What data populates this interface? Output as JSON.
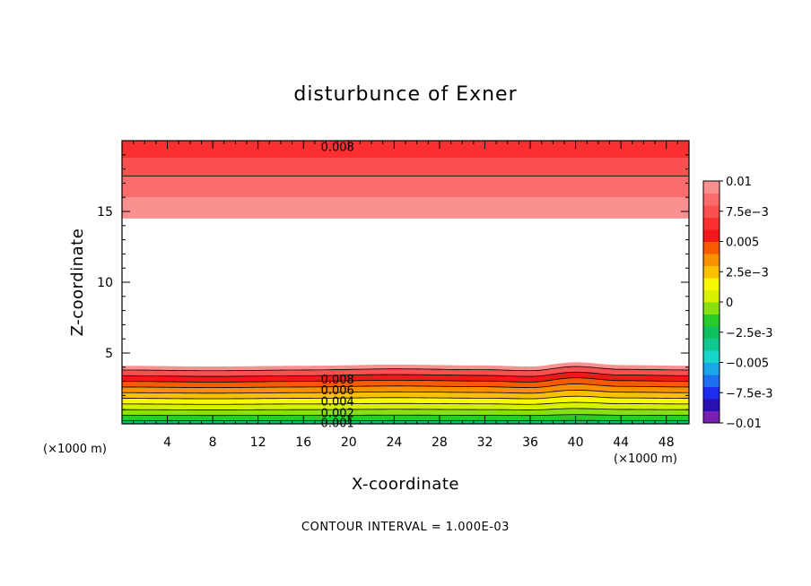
{
  "chart_data": {
    "type": "heatmap",
    "title": "disturbunce of Exner",
    "xlabel": "X-coordinate",
    "ylabel": "Z-coordinate",
    "x_unit": "(×1000 m)",
    "y_unit": "(×1000 m)",
    "xlim": [
      0,
      50
    ],
    "ylim": [
      0,
      20
    ],
    "x_ticks": [
      4,
      8,
      12,
      16,
      20,
      24,
      28,
      32,
      36,
      40,
      44,
      48
    ],
    "y_ticks": [
      5,
      10,
      15
    ],
    "note": "CONTOUR INTERVAL = 1.000E-03",
    "colorbar": {
      "labels": [
        "0.01",
        "7.5e-3",
        "0.005",
        "2.5e-3",
        "0",
        "-2.5e-3",
        "-0.005",
        "-7.5e-3",
        "-0.01"
      ],
      "colors": [
        "#7a1fb3",
        "#2a0fb3",
        "#1e2cf0",
        "#1f70f0",
        "#1aa6e8",
        "#18d6c8",
        "#10c890",
        "#10c060",
        "#28cc28",
        "#88e010",
        "#d6f000",
        "#f8f800",
        "#f8c000",
        "#f89000",
        "#f85a00",
        "#f01818",
        "#fa3030",
        "#fa5050",
        "#fa6c6c",
        "#fa9090"
      ]
    },
    "bands_upper": [
      {
        "level": 0.01,
        "z_from": 14.5,
        "z_to": 16.0,
        "color": "#fa9090"
      },
      {
        "level": 0.009,
        "z_from": 16.0,
        "z_to": 17.5,
        "color": "#fa6c6c"
      },
      {
        "level": 0.008,
        "z_from": 17.5,
        "z_to": 18.8,
        "color": "#fa5050"
      },
      {
        "level": 0.007,
        "z_from": 18.8,
        "z_to": 20.0,
        "color": "#fa3030"
      }
    ],
    "bands_lower": [
      {
        "level": 0.0,
        "z_from": 0.0,
        "z_to": 0.22,
        "color": "#10c060"
      },
      {
        "level": 0.001,
        "z_from": 0.22,
        "z_to": 0.6,
        "color": "#28cc28"
      },
      {
        "level": 0.002,
        "z_from": 0.6,
        "z_to": 1.0,
        "color": "#88e010"
      },
      {
        "level": 0.003,
        "z_from": 1.0,
        "z_to": 1.4,
        "color": "#d6f000"
      },
      {
        "level": 0.004,
        "z_from": 1.4,
        "z_to": 1.8,
        "color": "#f8f800"
      },
      {
        "level": 0.005,
        "z_from": 1.8,
        "z_to": 2.2,
        "color": "#f8c000"
      },
      {
        "level": 0.006,
        "z_from": 2.2,
        "z_to": 2.6,
        "color": "#f89000"
      },
      {
        "level": 0.007,
        "z_from": 2.6,
        "z_to": 3.0,
        "color": "#f85a00"
      },
      {
        "level": 0.008,
        "z_from": 3.0,
        "z_to": 3.4,
        "color": "#f01818"
      },
      {
        "level": 0.009,
        "z_from": 3.4,
        "z_to": 3.8,
        "color": "#fa5050"
      },
      {
        "level": 0.01,
        "z_from": 3.8,
        "z_to": 4.1,
        "color": "#fa9090"
      }
    ],
    "wave": {
      "x": [
        0,
        8,
        16,
        24,
        32,
        36,
        40,
        44,
        50
      ],
      "dz": [
        0.0,
        -0.05,
        0.0,
        0.08,
        0.02,
        -0.05,
        0.25,
        0.05,
        0.0
      ]
    },
    "contour_labels": [
      {
        "text": "0.008",
        "x": 19,
        "z": 19.6
      },
      {
        "text": "0.008",
        "x": 19,
        "z": 3.15
      },
      {
        "text": "0.006",
        "x": 19,
        "z": 2.4
      },
      {
        "text": "0.004",
        "x": 19,
        "z": 1.6
      },
      {
        "text": "0.002",
        "x": 19,
        "z": 0.8
      },
      {
        "text": "0.001",
        "x": 19,
        "z": 0.1
      }
    ]
  }
}
